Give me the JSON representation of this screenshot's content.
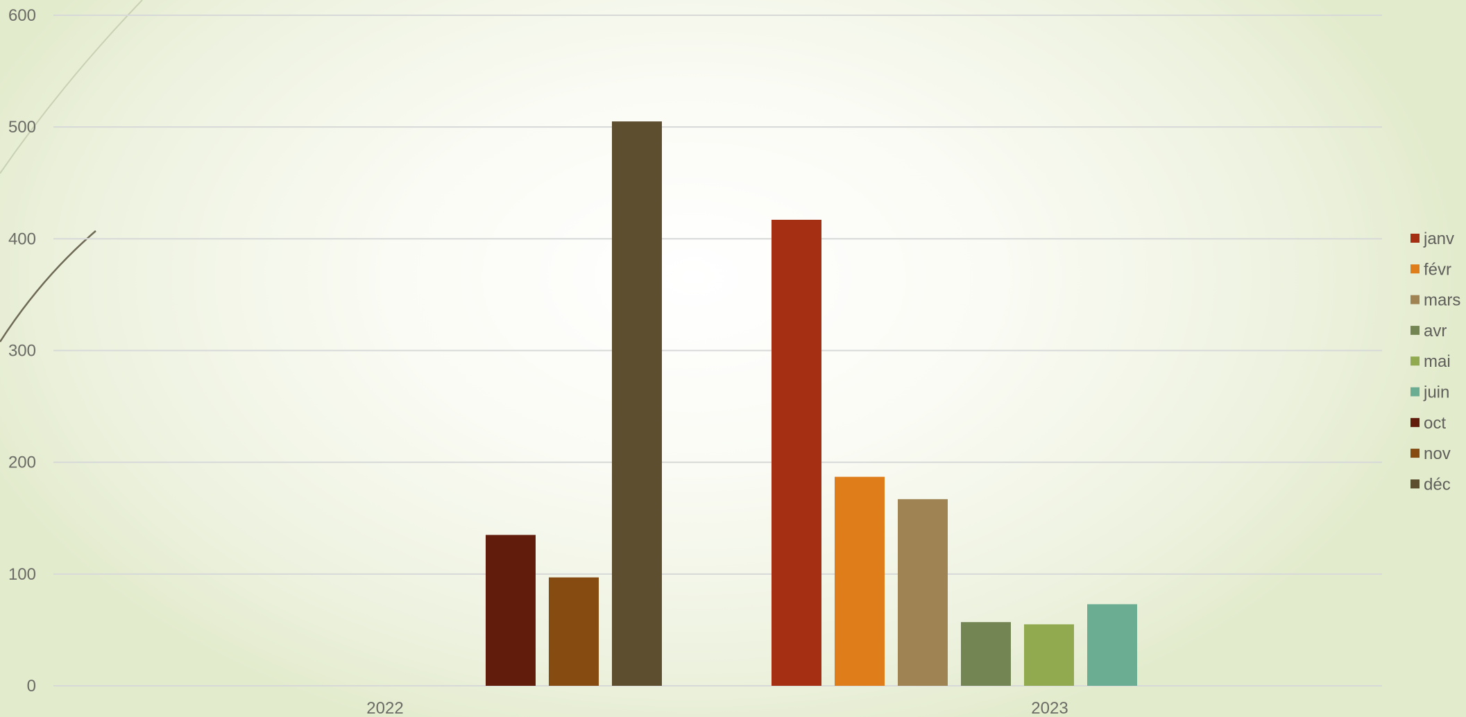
{
  "chart_data": {
    "type": "bar",
    "title": "",
    "xlabel": "",
    "ylabel": "",
    "ylim": [
      0,
      600
    ],
    "yticks": [
      0,
      100,
      200,
      300,
      400,
      500,
      600
    ],
    "ytick_labels": [
      "0",
      "100",
      "200",
      "300",
      "400",
      "500",
      "600"
    ],
    "grid": true,
    "legend_position": "right",
    "categories": [
      "2022",
      "2023"
    ],
    "series": [
      {
        "name": "janv",
        "color": "#a52f12",
        "values": [
          null,
          417
        ]
      },
      {
        "name": "févr",
        "color": "#e07d1b",
        "values": [
          null,
          187
        ]
      },
      {
        "name": "mars",
        "color": "#a08352",
        "values": [
          null,
          167
        ]
      },
      {
        "name": "avr",
        "color": "#738553",
        "values": [
          null,
          57
        ]
      },
      {
        "name": "mai",
        "color": "#91aa4f",
        "values": [
          null,
          55
        ]
      },
      {
        "name": "juin",
        "color": "#6aad93",
        "values": [
          null,
          73
        ]
      },
      {
        "name": "oct",
        "color": "#621c0c",
        "values": [
          135,
          null
        ]
      },
      {
        "name": "nov",
        "color": "#854b11",
        "values": [
          97,
          null
        ]
      },
      {
        "name": "déc",
        "color": "#5d4e30",
        "values": [
          505,
          null
        ]
      }
    ]
  }
}
